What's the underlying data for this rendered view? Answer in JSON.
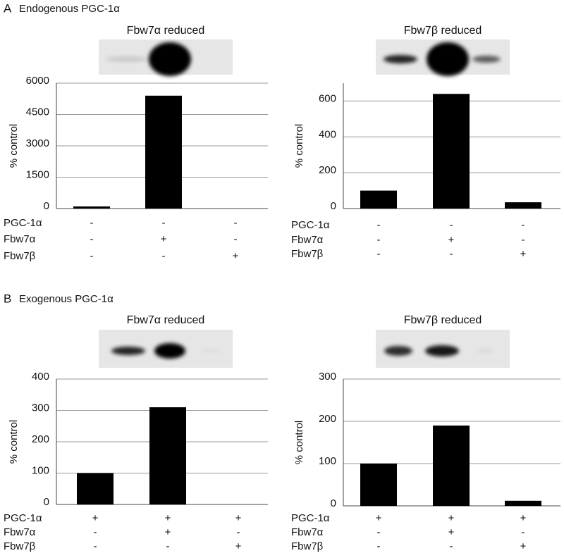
{
  "panels": [
    {
      "letter": "A",
      "title": "Endogenous PGC-1α"
    },
    {
      "letter": "B",
      "title": "Exogenous PGC-1α"
    }
  ],
  "chart_data": [
    {
      "type": "bar",
      "title": "Fbw7α reduced",
      "y_label": "% control",
      "color": "#000000",
      "values": [
        100,
        5400,
        0
      ],
      "ylim": [
        0,
        6000
      ],
      "yticks": [
        0,
        1500,
        3000,
        4500,
        6000
      ],
      "grid": true,
      "conditions": [
        {
          "name": "PGC-1α",
          "values": [
            "-",
            "-",
            "-"
          ]
        },
        {
          "name": "Fbw7α",
          "values": [
            "-",
            "+",
            "-"
          ]
        },
        {
          "name": "Fbw7β",
          "values": [
            "-",
            "-",
            "+"
          ]
        }
      ]
    },
    {
      "type": "bar",
      "title": "Fbw7β reduced",
      "y_label": "% control",
      "color": "#000000",
      "values": [
        100,
        640,
        35
      ],
      "ylim": [
        0,
        700
      ],
      "yticks": [
        0,
        200,
        400,
        600
      ],
      "grid": true,
      "conditions": [
        {
          "name": "PGC-1α",
          "values": [
            "-",
            "-",
            "-"
          ]
        },
        {
          "name": "Fbw7α",
          "values": [
            "-",
            "+",
            "-"
          ]
        },
        {
          "name": "Fbw7β",
          "values": [
            "-",
            "-",
            "+"
          ]
        }
      ]
    },
    {
      "type": "bar",
      "title": "Fbw7α reduced",
      "y_label": "% control",
      "color": "#000000",
      "values": [
        100,
        310,
        0
      ],
      "ylim": [
        0,
        400
      ],
      "yticks": [
        0,
        100,
        200,
        300,
        400
      ],
      "grid": true,
      "conditions": [
        {
          "name": "PGC-1α",
          "values": [
            "+",
            "+",
            "+"
          ]
        },
        {
          "name": "Fbw7α",
          "values": [
            "-",
            "+",
            "-"
          ]
        },
        {
          "name": "Fbw7β",
          "values": [
            "-",
            "-",
            "+"
          ]
        }
      ]
    },
    {
      "type": "bar",
      "title": "Fbw7β reduced",
      "y_label": "% control",
      "color": "#000000",
      "values": [
        100,
        190,
        12
      ],
      "ylim": [
        0,
        300
      ],
      "yticks": [
        0,
        100,
        200,
        300
      ],
      "grid": true,
      "conditions": [
        {
          "name": "PGC-1α",
          "values": [
            "+",
            "+",
            "+"
          ]
        },
        {
          "name": "Fbw7α",
          "values": [
            "-",
            "+",
            "-"
          ]
        },
        {
          "name": "Fbw7β",
          "values": [
            "-",
            "-",
            "+"
          ]
        }
      ]
    }
  ]
}
